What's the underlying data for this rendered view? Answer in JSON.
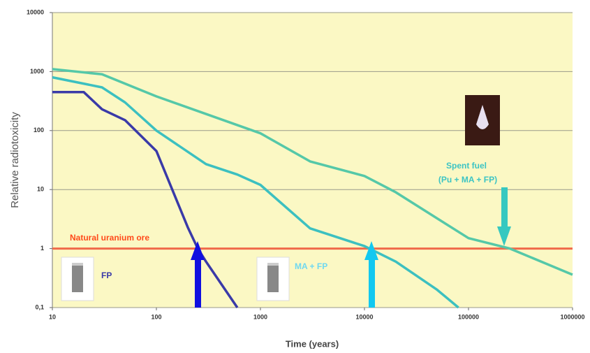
{
  "chart_data": {
    "type": "line",
    "y_label": "Relative radiotoxicity",
    "x_label": "Time (years)",
    "xscale": "log",
    "yscale": "log",
    "xlim": [
      10,
      1000000
    ],
    "ylim": [
      0.1,
      10000
    ],
    "xticks": [
      10,
      100,
      1000,
      10000,
      100000,
      1000000
    ],
    "yticks": [
      {
        "value": 0.1,
        "label": "0,1"
      },
      1,
      10,
      100,
      1000,
      10000
    ],
    "grid": true,
    "background": "#fbf8c4",
    "series": [
      {
        "name": "Spent fuel",
        "color": "#55c8a8",
        "x": [
          10,
          30,
          100,
          1000,
          3000,
          10000,
          20000,
          100000,
          250000,
          1000000
        ],
        "values": [
          1100,
          900,
          380,
          90,
          30,
          17,
          9,
          1.5,
          1,
          0.36
        ]
      },
      {
        "name": "MA + FP",
        "color": "#3cc0c0",
        "x": [
          10,
          30,
          50,
          100,
          300,
          600,
          1000,
          3000,
          10000,
          20000,
          50000,
          80000
        ],
        "values": [
          800,
          540,
          300,
          100,
          27,
          18,
          12,
          2.2,
          1.1,
          0.6,
          0.2,
          0.1
        ]
      },
      {
        "name": "FP",
        "color": "#3a3aa8",
        "x": [
          10,
          20,
          30,
          50,
          100,
          200,
          250,
          300,
          600
        ],
        "values": [
          450,
          450,
          230,
          150,
          45,
          2.3,
          1,
          0.6,
          0.1
        ]
      },
      {
        "name": "Natural uranium ore",
        "color": "#f06a4a",
        "x": [
          10,
          1000000
        ],
        "values": [
          1,
          1
        ]
      }
    ],
    "annotations": [
      "(Pu + MA + FP)"
    ]
  }
}
